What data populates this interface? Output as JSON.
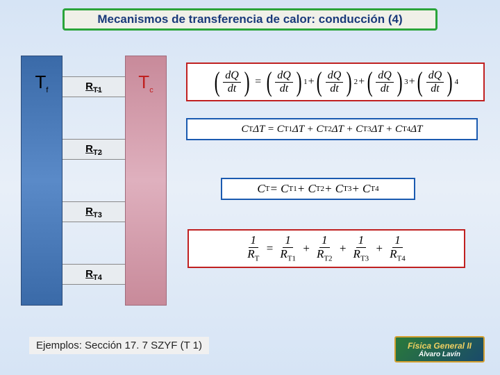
{
  "title": "Mecanismos de transferencia de calor: conducción (4)",
  "diagram": {
    "left_label": "T",
    "left_sub": "f",
    "right_label": "T",
    "right_sub": "c",
    "resistors": [
      {
        "base": "R",
        "sub": "T1"
      },
      {
        "base": "R",
        "sub": "T2"
      },
      {
        "base": "R",
        "sub": "T3"
      },
      {
        "base": "R",
        "sub": "T4"
      }
    ],
    "left_color": "#4a7ab8",
    "right_color": "#d09aaa"
  },
  "equations": {
    "eq1": {
      "lhs_num": "dQ",
      "lhs_den": "dt",
      "terms": [
        {
          "num": "dQ",
          "den": "dt",
          "sub": "1"
        },
        {
          "num": "dQ",
          "den": "dt",
          "sub": "2"
        },
        {
          "num": "dQ",
          "den": "dt",
          "sub": "3"
        },
        {
          "num": "dQ",
          "den": "dt",
          "sub": "4"
        }
      ],
      "border_color": "#c02020"
    },
    "eq2": {
      "text_parts": [
        "C",
        "T",
        "ΔT = C",
        "T1",
        "ΔT + C",
        "T2",
        "ΔT + C",
        "T3",
        "ΔT + C",
        "T4",
        "ΔT"
      ],
      "border_color": "#1a5ab0"
    },
    "eq3": {
      "text_parts": [
        "C",
        "T",
        " = C",
        "T1",
        " + C",
        "T2",
        " + C",
        "T3",
        " + C",
        "T4"
      ],
      "border_color": "#1a5ab0"
    },
    "eq4": {
      "lhs_num": "1",
      "lhs_den": "R",
      "lhs_den_sub": "T",
      "terms": [
        {
          "num": "1",
          "den": "R",
          "sub": "T1"
        },
        {
          "num": "1",
          "den": "R",
          "sub": "T2"
        },
        {
          "num": "1",
          "den": "R",
          "sub": "T3"
        },
        {
          "num": "1",
          "den": "R",
          "sub": "T4"
        }
      ],
      "border_color": "#c02020"
    }
  },
  "footer": "Ejemplos: Sección 17. 7 SZYF (T 1)",
  "logo": {
    "line1": "Física General II",
    "line2": "Álvaro Lavín"
  },
  "colors": {
    "bg_top": "#d6e4f5",
    "title_border": "#2aa43a",
    "title_text": "#1a3a7a"
  }
}
